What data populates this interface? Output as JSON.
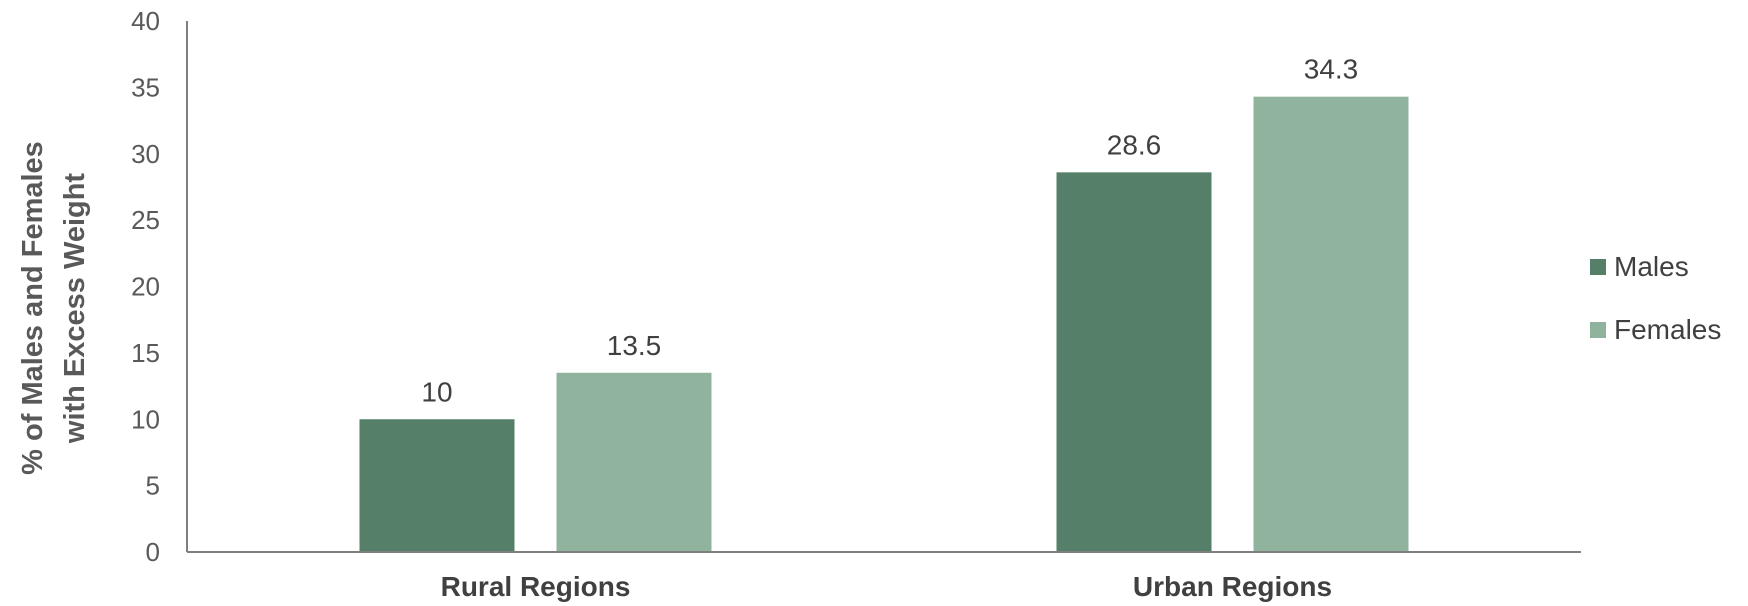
{
  "chart_data": {
    "type": "bar",
    "categories": [
      "Rural Regions",
      "Urban Regions"
    ],
    "series": [
      {
        "name": "Males",
        "values": [
          10,
          28.6
        ],
        "color": "#567f69"
      },
      {
        "name": "Females",
        "values": [
          13.5,
          34.3
        ],
        "color": "#90b39e"
      }
    ],
    "title": "",
    "xlabel": "",
    "ylabel": "% of Males and Females with Excess Weight",
    "ylabel_lines": [
      "% of Males and Females",
      "with Excess Weight"
    ],
    "ylim": [
      0,
      40
    ],
    "yticks": [
      0,
      5,
      10,
      15,
      20,
      25,
      30,
      35,
      40
    ],
    "data_labels": true,
    "grid": false,
    "legend": "right"
  }
}
